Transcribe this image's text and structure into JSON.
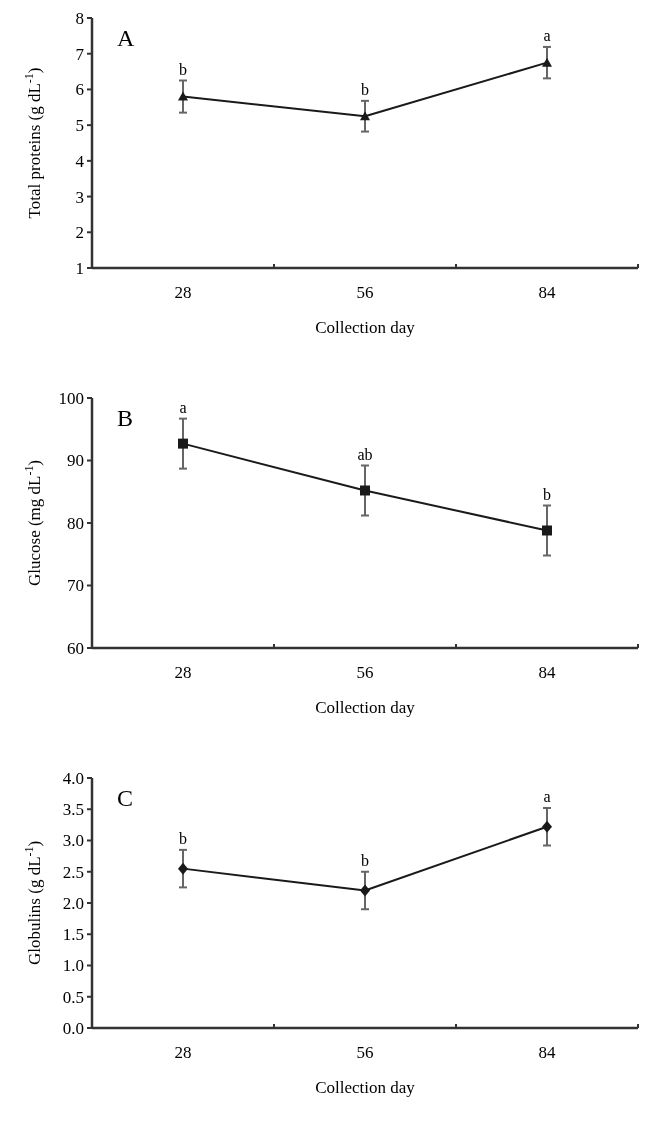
{
  "chart_data": [
    {
      "type": "line",
      "title": "A",
      "xlabel": "Collection day",
      "ylabel": "Total proteins (g dL$^{-1}$)",
      "categories": [
        "28",
        "56",
        "84"
      ],
      "series": [
        {
          "color": "#1a1a1a",
          "values": [
            5.8,
            5.25,
            6.75
          ],
          "errors": [
            0.45,
            0.43,
            0.44
          ],
          "marker": "triangle"
        }
      ],
      "ylim": [
        1,
        8
      ],
      "yticks": [
        1,
        2,
        3,
        4,
        5,
        6,
        7,
        8
      ],
      "annotations": [
        {
          "text": "b",
          "x": "28",
          "y": 6.25
        },
        {
          "text": "b",
          "x": "56",
          "y": 5.68
        },
        {
          "text": "a",
          "x": "84",
          "y": 7.19
        }
      ]
    },
    {
      "type": "line",
      "title": "B",
      "xlabel": "Collection day",
      "ylabel": "Glucose (mg dL$^{-1}$)",
      "categories": [
        "28",
        "56",
        "84"
      ],
      "series": [
        {
          "color": "#1a1a1a",
          "values": [
            92.7,
            85.2,
            78.8
          ],
          "errors": [
            4,
            4,
            4
          ],
          "marker": "square"
        }
      ],
      "ylim": [
        60,
        100
      ],
      "yticks": [
        60,
        70,
        80,
        90,
        100
      ],
      "annotations": [
        {
          "text": "a",
          "x": "28",
          "y": 96.7
        },
        {
          "text": "ab",
          "x": "56",
          "y": 89.2
        },
        {
          "text": "b",
          "x": "84",
          "y": 82.8
        }
      ]
    },
    {
      "type": "line",
      "title": "C",
      "xlabel": "Collection day",
      "ylabel": "Globulins (g dL$^{-1}$)",
      "categories": [
        "28",
        "56",
        "84"
      ],
      "series": [
        {
          "color": "#1a1a1a",
          "values": [
            2.55,
            2.2,
            3.22
          ],
          "errors": [
            0.3,
            0.3,
            0.3
          ],
          "marker": "diamond"
        }
      ],
      "ylim": [
        0,
        4
      ],
      "yticks": [
        {
          "value": 0,
          "label": "0.0"
        },
        {
          "value": 0.5,
          "label": "0.5"
        },
        {
          "value": 1,
          "label": "1.0"
        },
        {
          "value": 1.5,
          "label": "1.5"
        },
        {
          "value": 2,
          "label": "2.0"
        },
        {
          "value": 2.5,
          "label": "2.5"
        },
        {
          "value": 3,
          "label": "3.0"
        },
        {
          "value": 3.5,
          "label": "3.5"
        },
        {
          "value": 4,
          "label": "4.0"
        }
      ],
      "annotations": [
        {
          "text": "b",
          "x": "28",
          "y": 2.85
        },
        {
          "text": "b",
          "x": "56",
          "y": 2.5
        },
        {
          "text": "a",
          "x": "84",
          "y": 3.52
        }
      ]
    }
  ]
}
